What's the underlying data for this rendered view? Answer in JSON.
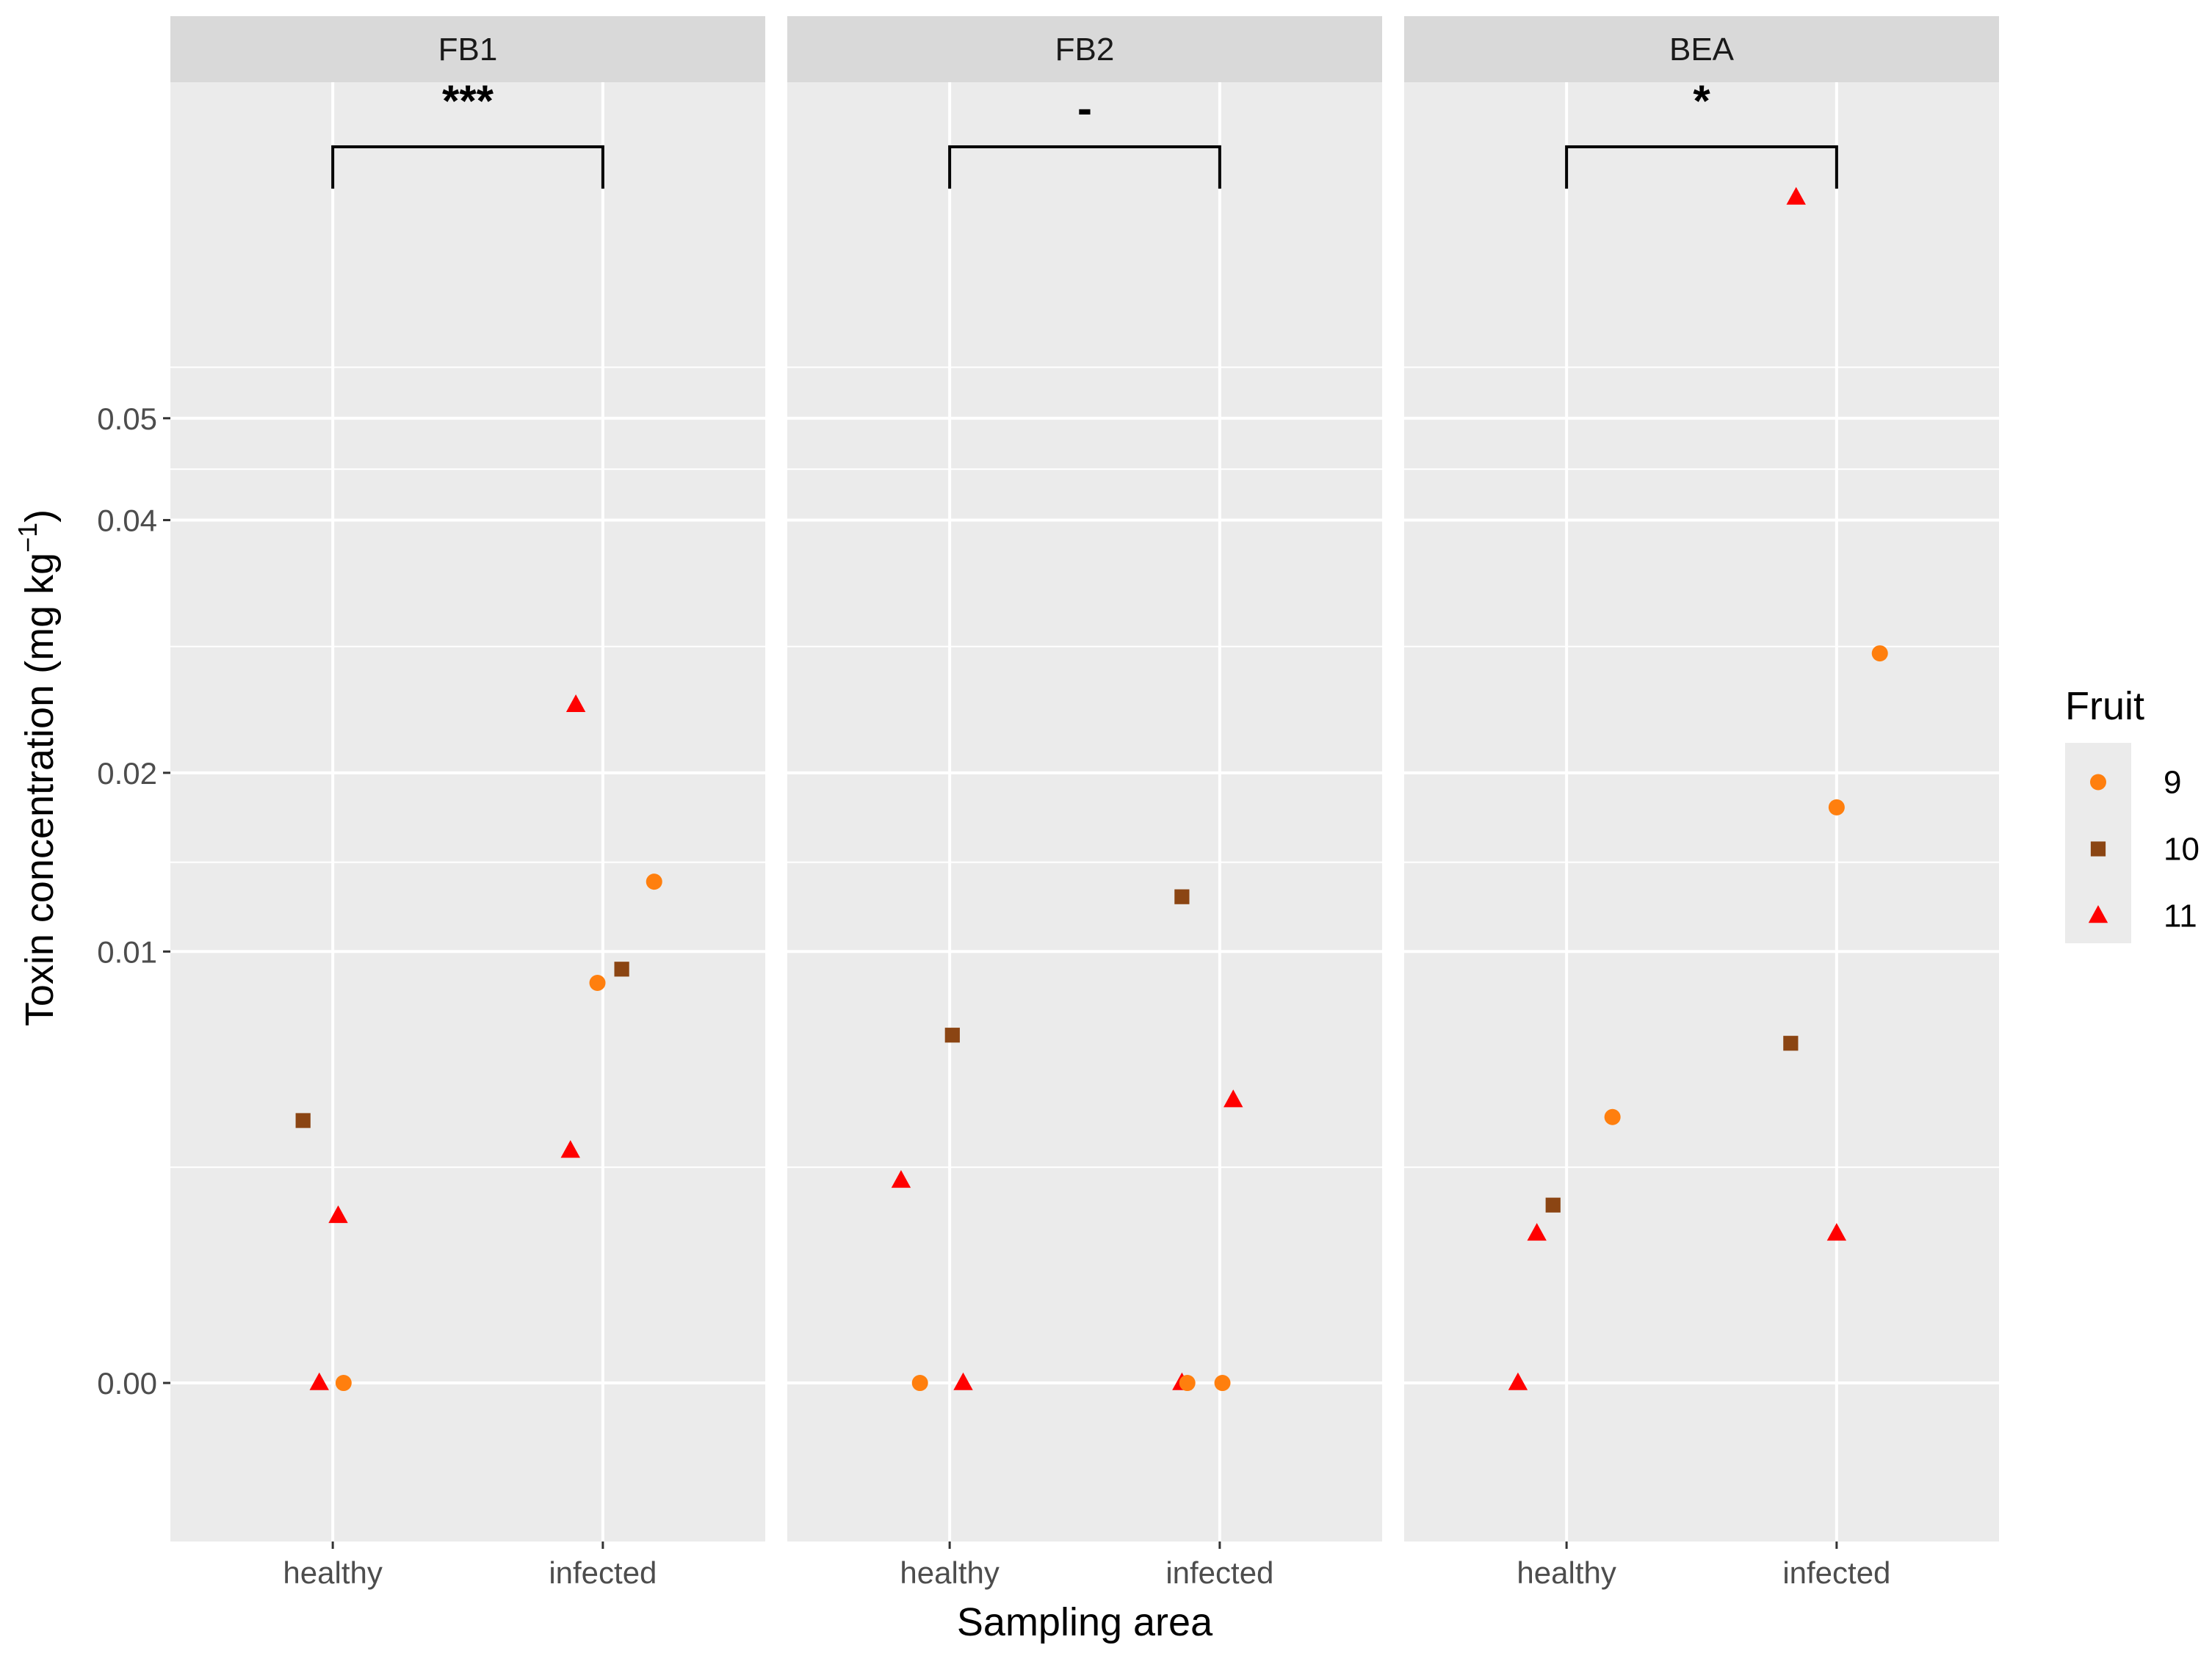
{
  "chart_data": {
    "type": "scatter",
    "title": "",
    "xlabel": "Sampling area",
    "ylabel": "Toxin concentration (mg kg",
    "ylabel_sup": "−1",
    "ylabel_end": ")",
    "categories": [
      "healthy",
      "infected"
    ],
    "yticks": [
      "0.00",
      "0.01",
      "0.02",
      "0.04",
      "0.05"
    ],
    "ytick_values": [
      0.0,
      0.01,
      0.02,
      0.04,
      0.05
    ],
    "yscale": "sqrt",
    "ylim": [
      -0.00135,
      0.0909
    ],
    "legend": {
      "title": "Fruit",
      "position": "right",
      "entries": [
        {
          "label": "9",
          "shape": "circle",
          "color": "#FF7F0E"
        },
        {
          "label": "10",
          "shape": "square",
          "color": "#8B4513"
        },
        {
          "label": "11",
          "shape": "triangle",
          "color": "#FF0000"
        }
      ]
    },
    "panels": [
      {
        "strip": "FB1",
        "significance": "***",
        "points": [
          {
            "category": "healthy",
            "jitter": -0.11,
            "fruit": "10",
            "value": 0.0037
          },
          {
            "category": "healthy",
            "jitter": 0.02,
            "fruit": "11",
            "value": 0.0015
          },
          {
            "category": "healthy",
            "jitter": -0.05,
            "fruit": "11",
            "value": 0.0
          },
          {
            "category": "healthy",
            "jitter": 0.04,
            "fruit": "9",
            "value": 0.0
          },
          {
            "category": "infected",
            "jitter": -0.1,
            "fruit": "11",
            "value": 0.0247
          },
          {
            "category": "infected",
            "jitter": 0.19,
            "fruit": "9",
            "value": 0.0135
          },
          {
            "category": "infected",
            "jitter": 0.07,
            "fruit": "10",
            "value": 0.0092
          },
          {
            "category": "infected",
            "jitter": -0.02,
            "fruit": "9",
            "value": 0.0086
          },
          {
            "category": "infected",
            "jitter": -0.12,
            "fruit": "11",
            "value": 0.0029
          }
        ]
      },
      {
        "strip": "FB2",
        "significance": "-",
        "points": [
          {
            "category": "healthy",
            "jitter": 0.01,
            "fruit": "10",
            "value": 0.0065
          },
          {
            "category": "healthy",
            "jitter": -0.18,
            "fruit": "11",
            "value": 0.0022
          },
          {
            "category": "healthy",
            "jitter": -0.11,
            "fruit": "9",
            "value": 0.0
          },
          {
            "category": "healthy",
            "jitter": 0.05,
            "fruit": "11",
            "value": 0.0
          },
          {
            "category": "infected",
            "jitter": -0.14,
            "fruit": "10",
            "value": 0.0127
          },
          {
            "category": "infected",
            "jitter": 0.05,
            "fruit": "11",
            "value": 0.0043
          },
          {
            "category": "infected",
            "jitter": -0.14,
            "fruit": "11",
            "value": 0.0
          },
          {
            "category": "infected",
            "jitter": -0.12,
            "fruit": "9",
            "value": 0.0
          },
          {
            "category": "infected",
            "jitter": 0.01,
            "fruit": "9",
            "value": 0.0
          }
        ]
      },
      {
        "strip": "BEA",
        "significance": "*",
        "points": [
          {
            "category": "healthy",
            "jitter": 0.17,
            "fruit": "9",
            "value": 0.0038
          },
          {
            "category": "healthy",
            "jitter": -0.05,
            "fruit": "10",
            "value": 0.0017
          },
          {
            "category": "healthy",
            "jitter": -0.11,
            "fruit": "11",
            "value": 0.0012
          },
          {
            "category": "healthy",
            "jitter": -0.18,
            "fruit": "11",
            "value": 0.0
          },
          {
            "category": "infected",
            "jitter": -0.15,
            "fruit": "11",
            "value": 0.0755
          },
          {
            "category": "infected",
            "jitter": 0.16,
            "fruit": "9",
            "value": 0.0286
          },
          {
            "category": "infected",
            "jitter": 0.0,
            "fruit": "9",
            "value": 0.0178
          },
          {
            "category": "infected",
            "jitter": -0.17,
            "fruit": "10",
            "value": 0.0062
          },
          {
            "category": "infected",
            "jitter": 0.0,
            "fruit": "11",
            "value": 0.0012
          }
        ]
      }
    ]
  }
}
